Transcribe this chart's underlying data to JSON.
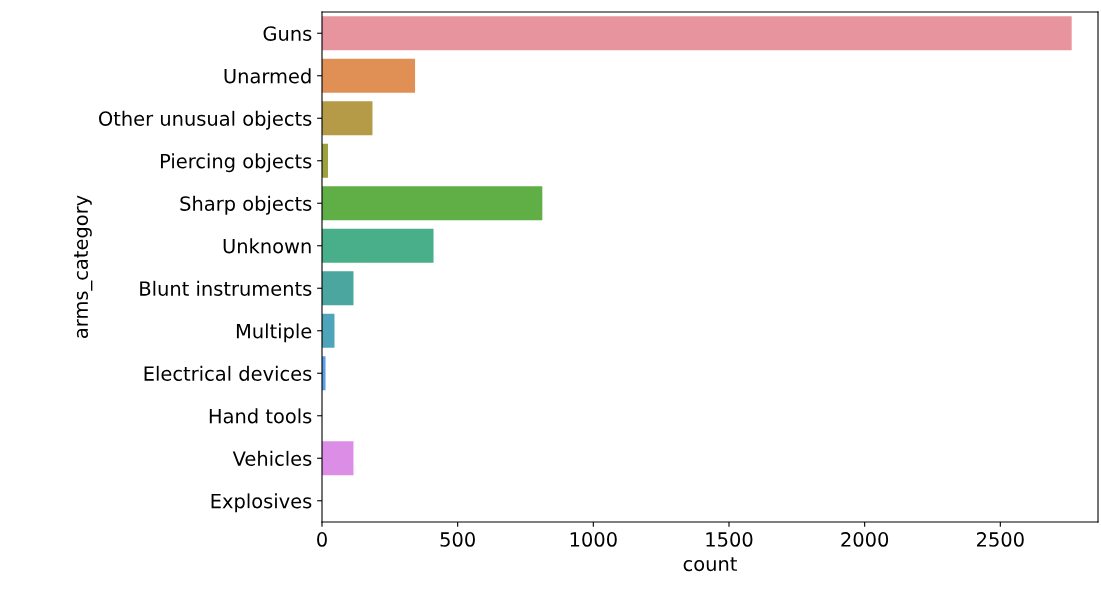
{
  "chart_data": {
    "type": "bar",
    "orientation": "horizontal",
    "xlabel": "count",
    "ylabel": "arms_category",
    "categories": [
      "Guns",
      "Unarmed",
      "Other unusual objects",
      "Piercing objects",
      "Sharp objects",
      "Unknown",
      "Blunt instruments",
      "Multiple",
      "Electrical devices",
      "Hand tools",
      "Vehicles",
      "Explosives"
    ],
    "values": [
      2763,
      343,
      186,
      22,
      812,
      411,
      116,
      46,
      13,
      0,
      116,
      0
    ],
    "colors": [
      "#e8949f",
      "#e08f55",
      "#b59a48",
      "#9ba13f",
      "#5fae46",
      "#49ae8a",
      "#4aa69f",
      "#4ea5b9",
      "#57a0e5",
      "#a79ae6",
      "#dc8ee6",
      "#e592c0"
    ],
    "xlim": [
      0,
      2860
    ],
    "xticks": [
      0,
      500,
      1000,
      1500,
      2000,
      2500
    ],
    "grid": false,
    "legend": false
  }
}
